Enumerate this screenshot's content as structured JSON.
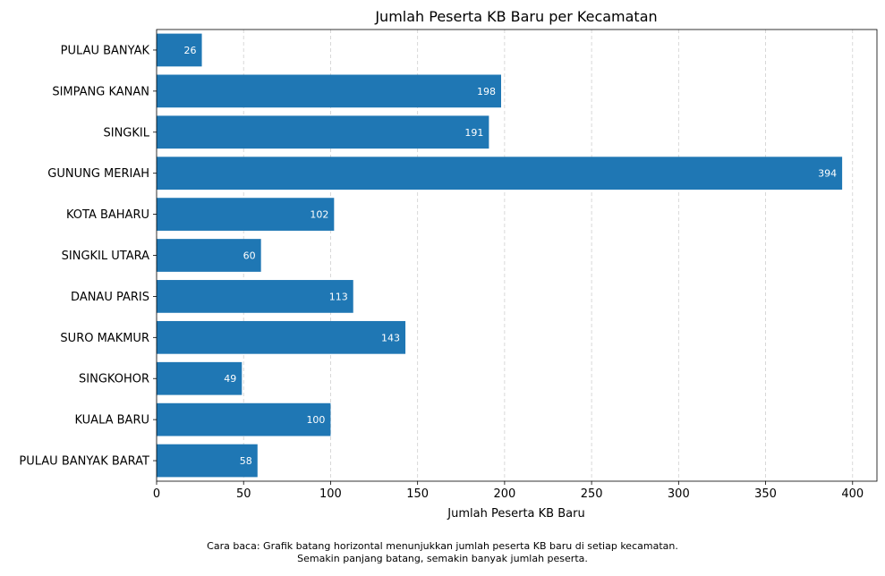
{
  "chart_data": {
    "type": "bar",
    "orientation": "horizontal",
    "title": "Jumlah Peserta KB Baru per Kecamatan",
    "xlabel": "Jumlah Peserta KB Baru",
    "ylabel": "",
    "categories": [
      "PULAU BANYAK",
      "SIMPANG KANAN",
      "SINGKIL",
      "GUNUNG MERIAH",
      "KOTA BAHARU",
      "SINGKIL UTARA",
      "DANAU PARIS",
      "SURO MAKMUR",
      "SINGKOHOR",
      "KUALA BARU",
      "PULAU BANYAK BARAT"
    ],
    "values": [
      26,
      198,
      191,
      394,
      102,
      60,
      113,
      143,
      49,
      100,
      58
    ],
    "xlim": [
      0,
      414
    ],
    "xticks": [
      0,
      50,
      100,
      150,
      200,
      250,
      300,
      350,
      400
    ],
    "grid": "vertical dashed",
    "bar_color": "#1f77b4",
    "label_color": "#ffffff"
  },
  "caption": {
    "line1": "Cara baca: Grafik batang horizontal menunjukkan jumlah peserta KB baru di setiap kecamatan.",
    "line2": "Semakin panjang batang, semakin banyak jumlah peserta."
  }
}
